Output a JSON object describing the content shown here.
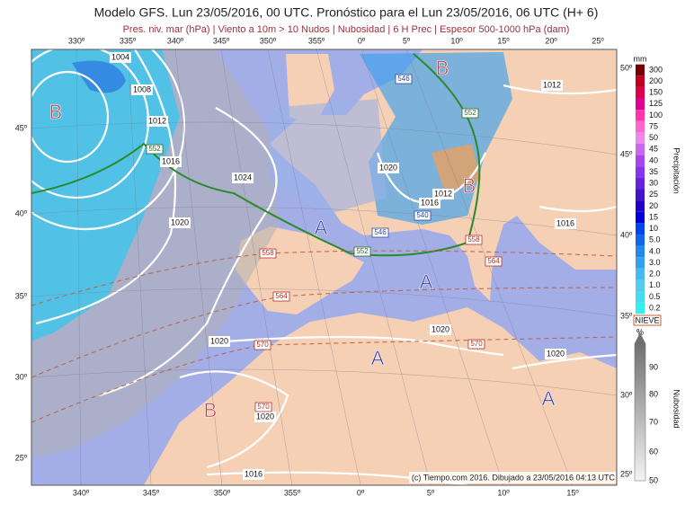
{
  "header": {
    "title": "Modelo GFS. Lun 23/05/2016, 00 UTC. Pronóstico para el Lun 23/05/2016, 06 UTC (H+ 6)",
    "subtitle": "Pres. niv. mar (hPa) | Viento a 10m > 10 Nudos | Nubosidad | 6 H Prec | Espesor 500-1000 hPa (dam)"
  },
  "map": {
    "lon_top": [
      "330º",
      "335º",
      "340º",
      "345º",
      "350º",
      "355º",
      "0º",
      "5º",
      "10º",
      "15º",
      "20º",
      "25º"
    ],
    "lon_bottom": [
      "340º",
      "345º",
      "350º",
      "355º",
      "0º",
      "5º",
      "10º",
      "15º"
    ],
    "lat_left": [
      "45º",
      "40º",
      "35º",
      "30º",
      "25º"
    ],
    "lat_right": [
      "50º",
      "45º",
      "40º",
      "35º",
      "30º",
      "25º"
    ],
    "isobar_labels": [
      "1004",
      "1008",
      "1012",
      "1016",
      "1024",
      "1020",
      "1020",
      "1016",
      "1012",
      "1012",
      "1016",
      "1020",
      "1020",
      "1020",
      "1020",
      "1016"
    ],
    "thickness_labels": [
      "546",
      "552",
      "552",
      "546",
      "540",
      "552",
      "558",
      "558",
      "564",
      "564",
      "570",
      "570",
      "570"
    ],
    "centers": [
      "B",
      "B",
      "B",
      "A",
      "A",
      "A",
      "A",
      "B"
    ],
    "credit": "(c) Tiempo.com 2016. Dibujado a 23/05/2016 04:13 UTC"
  },
  "legend": {
    "precip": {
      "unit": "mm",
      "title": "Precipitación",
      "levels": [
        "300",
        "200",
        "150",
        "125",
        "100",
        "75",
        "50",
        "45",
        "40",
        "35",
        "30",
        "25",
        "20",
        "15",
        "10",
        "5.0",
        "4.0",
        "3.0",
        "2.0",
        "1.0",
        "0.5",
        "0.2"
      ],
      "colors": [
        "#7a0000",
        "#c00020",
        "#e0004a",
        "#e00090",
        "#ff33aa",
        "#ff66cc",
        "#ee88ee",
        "#cc66ee",
        "#aa44ee",
        "#8833ee",
        "#6622dd",
        "#4411cc",
        "#2200cc",
        "#0000dd",
        "#0044ee",
        "#1166ee",
        "#2288ee",
        "#33a0ee",
        "#44bbee",
        "#55ccee",
        "#44ddee",
        "#33eeee"
      ]
    },
    "cloud": {
      "badge": "NIEVE",
      "unit": "%",
      "title": "Nubosidad",
      "levels": [
        "90",
        "80",
        "70",
        "60",
        "50"
      ]
    }
  }
}
